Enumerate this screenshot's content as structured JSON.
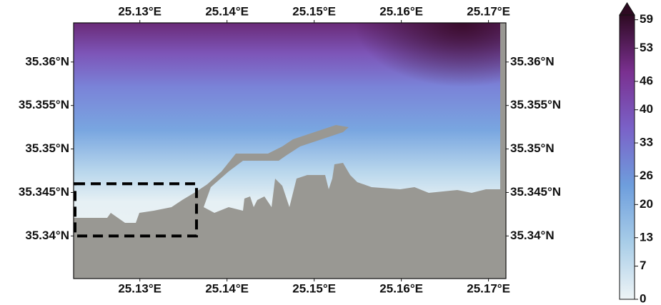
{
  "chart_data": {
    "type": "map",
    "xlim": [
      25.1224,
      25.172
    ],
    "ylim": [
      35.3351,
      35.3645
    ],
    "xticks": [
      {
        "value": 25.13,
        "label": "25.13°E"
      },
      {
        "value": 25.14,
        "label": "25.14°E"
      },
      {
        "value": 25.15,
        "label": "25.15°E"
      },
      {
        "value": 25.16,
        "label": "25.16°E"
      },
      {
        "value": 25.17,
        "label": "25.17°E"
      }
    ],
    "yticks": [
      {
        "value": 35.34,
        "label": "35.34°N"
      },
      {
        "value": 35.345,
        "label": "35.345°N"
      },
      {
        "value": 35.35,
        "label": "35.35°N"
      },
      {
        "value": 35.355,
        "label": "35.355°N"
      },
      {
        "value": 35.36,
        "label": "35.36°N"
      }
    ],
    "box": {
      "lon": [
        25.1224,
        25.1365
      ],
      "lat": [
        35.34,
        35.346
      ]
    },
    "colorbar": {
      "lim": [
        0,
        60
      ],
      "ticks": [
        0,
        7,
        13,
        20,
        26,
        33,
        40,
        46,
        53,
        59
      ]
    }
  }
}
